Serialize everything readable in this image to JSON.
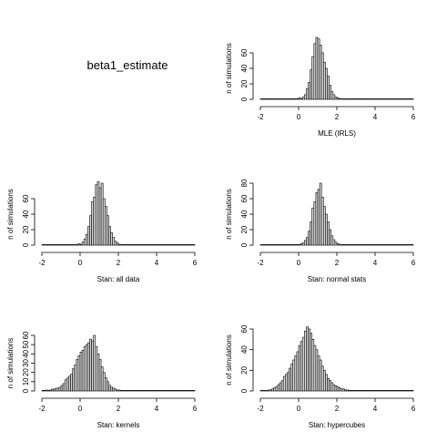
{
  "figure": {
    "title": "beta1_estimate"
  },
  "chart_data": [
    {
      "type": "bar",
      "title": "",
      "xlabel": "MLE (IRLS)",
      "ylabel": "n of simulations",
      "xlim": [
        -2,
        6
      ],
      "ylim": [
        0,
        80
      ],
      "xticks": [
        "-2",
        "0",
        "2",
        "4",
        "6"
      ],
      "yticks": [
        "0",
        "20",
        "40",
        "60"
      ],
      "bin_width": 0.1,
      "bin_start": -2.0,
      "values": [
        0,
        0,
        0,
        0,
        0,
        0,
        0,
        0,
        0,
        0,
        0,
        0,
        0,
        0,
        0,
        0,
        0,
        0,
        1,
        0,
        2,
        1,
        3,
        6,
        14,
        22,
        38,
        55,
        72,
        80,
        78,
        70,
        60,
        48,
        40,
        30,
        18,
        10,
        6,
        3,
        2,
        1,
        1,
        0,
        0,
        0,
        0,
        0,
        0,
        0,
        0,
        1,
        0,
        0,
        0,
        0,
        0,
        0,
        0,
        0,
        0,
        0,
        0,
        0,
        0,
        0,
        0,
        0,
        0,
        0,
        0,
        0,
        0,
        0,
        0,
        0,
        0,
        0,
        0,
        0
      ]
    },
    {
      "type": "bar",
      "title": "",
      "xlabel": "Stan: all data",
      "ylabel": "n of simulations",
      "xlim": [
        -2,
        6
      ],
      "ylim": [
        0,
        80
      ],
      "xticks": [
        "-2",
        "0",
        "2",
        "4",
        "6"
      ],
      "yticks": [
        "0",
        "20",
        "40",
        "60"
      ],
      "bin_width": 0.1,
      "bin_start": -2.0,
      "values": [
        0,
        0,
        0,
        0,
        0,
        0,
        0,
        0,
        0,
        0,
        0,
        0,
        0,
        0,
        0,
        0,
        0,
        1,
        0,
        2,
        1,
        4,
        8,
        14,
        24,
        38,
        56,
        62,
        78,
        82,
        74,
        80,
        60,
        50,
        38,
        24,
        16,
        10,
        5,
        3,
        1,
        1,
        0,
        0,
        1,
        0,
        0,
        0,
        0,
        0,
        0,
        0,
        0,
        0,
        0,
        0,
        0,
        0,
        0,
        0,
        0,
        0,
        0,
        0,
        0,
        0,
        0,
        0,
        0,
        0,
        0,
        0,
        0,
        0,
        0,
        0,
        0,
        0,
        0,
        0
      ]
    },
    {
      "type": "bar",
      "title": "",
      "xlabel": "Stan: normal stats",
      "ylabel": "n of simulations",
      "xlim": [
        -2,
        6
      ],
      "ylim": [
        0,
        80
      ],
      "xticks": [
        "-2",
        "0",
        "2",
        "4",
        "6"
      ],
      "yticks": [
        "0",
        "20",
        "40",
        "60",
        "80"
      ],
      "bin_width": 0.1,
      "bin_start": -2.0,
      "values": [
        0,
        0,
        0,
        0,
        0,
        0,
        0,
        0,
        0,
        0,
        0,
        0,
        0,
        0,
        0,
        0,
        0,
        0,
        0,
        1,
        0,
        2,
        3,
        6,
        10,
        18,
        30,
        48,
        56,
        68,
        72,
        80,
        62,
        50,
        40,
        30,
        20,
        12,
        7,
        4,
        2,
        1,
        1,
        0,
        0,
        0,
        0,
        0,
        0,
        0,
        0,
        0,
        0,
        0,
        0,
        0,
        0,
        0,
        0,
        0,
        0,
        0,
        0,
        0,
        0,
        0,
        0,
        0,
        0,
        0,
        0,
        0,
        0,
        0,
        0,
        0,
        0,
        0,
        0,
        0
      ]
    },
    {
      "type": "bar",
      "title": "",
      "xlabel": "Stan: kernels",
      "ylabel": "n of simulations",
      "xlim": [
        -2,
        6
      ],
      "ylim": [
        0,
        60
      ],
      "xticks": [
        "-2",
        "0",
        "2",
        "4",
        "6"
      ],
      "yticks": [
        "0",
        "10",
        "20",
        "30",
        "40",
        "50",
        "60"
      ],
      "bin_width": 0.1,
      "bin_start": -2.0,
      "values": [
        0,
        0,
        1,
        0,
        1,
        2,
        2,
        3,
        3,
        4,
        6,
        8,
        12,
        14,
        16,
        18,
        24,
        28,
        34,
        38,
        42,
        44,
        48,
        50,
        52,
        56,
        54,
        60,
        48,
        40,
        34,
        26,
        20,
        14,
        10,
        6,
        4,
        3,
        2,
        1,
        1,
        0,
        0,
        0,
        0,
        0,
        0,
        0,
        0,
        0,
        0,
        0,
        0,
        0,
        0,
        0,
        0,
        0,
        0,
        0,
        0,
        0,
        0,
        0,
        0,
        0,
        0,
        0,
        0,
        0,
        0,
        0,
        0,
        0,
        0,
        0,
        0,
        0,
        0,
        0
      ]
    },
    {
      "type": "bar",
      "title": "",
      "xlabel": "Stan: hypercubes",
      "ylabel": "n of simulations",
      "xlim": [
        -2,
        6
      ],
      "ylim": [
        0,
        60
      ],
      "xticks": [
        "-2",
        "0",
        "2",
        "4",
        "6"
      ],
      "yticks": [
        "0",
        "20",
        "40",
        "60"
      ],
      "bin_width": 0.1,
      "bin_start": -2.0,
      "values": [
        0,
        0,
        0,
        0,
        1,
        1,
        2,
        3,
        4,
        6,
        8,
        10,
        14,
        16,
        18,
        22,
        26,
        30,
        34,
        38,
        44,
        48,
        52,
        58,
        62,
        60,
        56,
        50,
        44,
        40,
        34,
        30,
        24,
        20,
        16,
        12,
        10,
        8,
        6,
        5,
        4,
        3,
        2,
        2,
        1,
        1,
        0,
        0,
        0,
        0,
        0,
        0,
        0,
        0,
        0,
        0,
        0,
        0,
        0,
        0,
        0,
        0,
        0,
        0,
        0,
        0,
        0,
        0,
        0,
        0,
        0,
        0,
        0,
        0,
        0,
        0,
        0,
        0,
        0,
        0
      ]
    }
  ]
}
